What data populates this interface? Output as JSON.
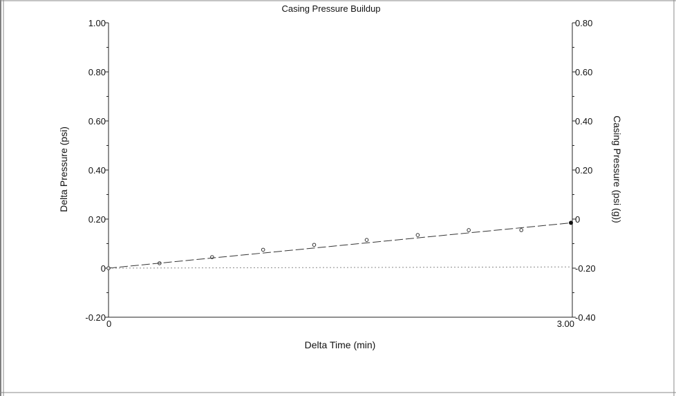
{
  "chart_data": {
    "type": "scatter",
    "title": "Casing Pressure Buildup",
    "xlabel": "Delta Time (min)",
    "ylabel": "Delta Pressure (psi)",
    "y2label": "Casing Pressure (psi (g))",
    "xlim": [
      0,
      3.0
    ],
    "ylim": [
      -0.2,
      1.0
    ],
    "y2lim": [
      -0.4,
      0.8
    ],
    "x_tick_labels": [
      {
        "value": 0,
        "label": "0"
      },
      {
        "value": 3.0,
        "label": "3.00"
      }
    ],
    "y_tick_labels": [
      {
        "value": 1.0,
        "label": "1.00"
      },
      {
        "value": 0.8,
        "label": "0.80"
      },
      {
        "value": 0.6,
        "label": "0.60"
      },
      {
        "value": 0.4,
        "label": "0.40"
      },
      {
        "value": 0.2,
        "label": "0.20"
      },
      {
        "value": 0.0,
        "label": "0"
      },
      {
        "value": -0.2,
        "label": "-0.20"
      }
    ],
    "y2_tick_labels": [
      {
        "value": 0.8,
        "label": "0.80"
      },
      {
        "value": 0.6,
        "label": "0.60"
      },
      {
        "value": 0.4,
        "label": "0.40"
      },
      {
        "value": 0.2,
        "label": "0.20"
      },
      {
        "value": 0.0,
        "label": "0"
      },
      {
        "value": -0.2,
        "label": "-0.20"
      },
      {
        "value": -0.4,
        "label": "-0.40"
      }
    ],
    "grid": false,
    "series": [
      {
        "style": "open-circle-markers",
        "color": "#333333",
        "x": [
          0.0,
          0.33,
          0.67,
          1.0,
          1.33,
          1.67,
          2.0,
          2.33,
          2.67
        ],
        "y": [
          0.0,
          0.02,
          0.045,
          0.075,
          0.095,
          0.115,
          0.135,
          0.155,
          0.155
        ]
      },
      {
        "style": "dashed-line",
        "color": "#333333",
        "x": [
          0.0,
          3.0
        ],
        "y": [
          0.0,
          0.185
        ]
      },
      {
        "style": "filled-marker",
        "color": "#111111",
        "x": [
          3.0
        ],
        "y": [
          0.185
        ]
      },
      {
        "style": "dotted-line",
        "axis": "y2",
        "color": "#888888",
        "x": [
          0.0,
          3.0
        ],
        "y": [
          -0.2,
          -0.195
        ]
      }
    ]
  }
}
